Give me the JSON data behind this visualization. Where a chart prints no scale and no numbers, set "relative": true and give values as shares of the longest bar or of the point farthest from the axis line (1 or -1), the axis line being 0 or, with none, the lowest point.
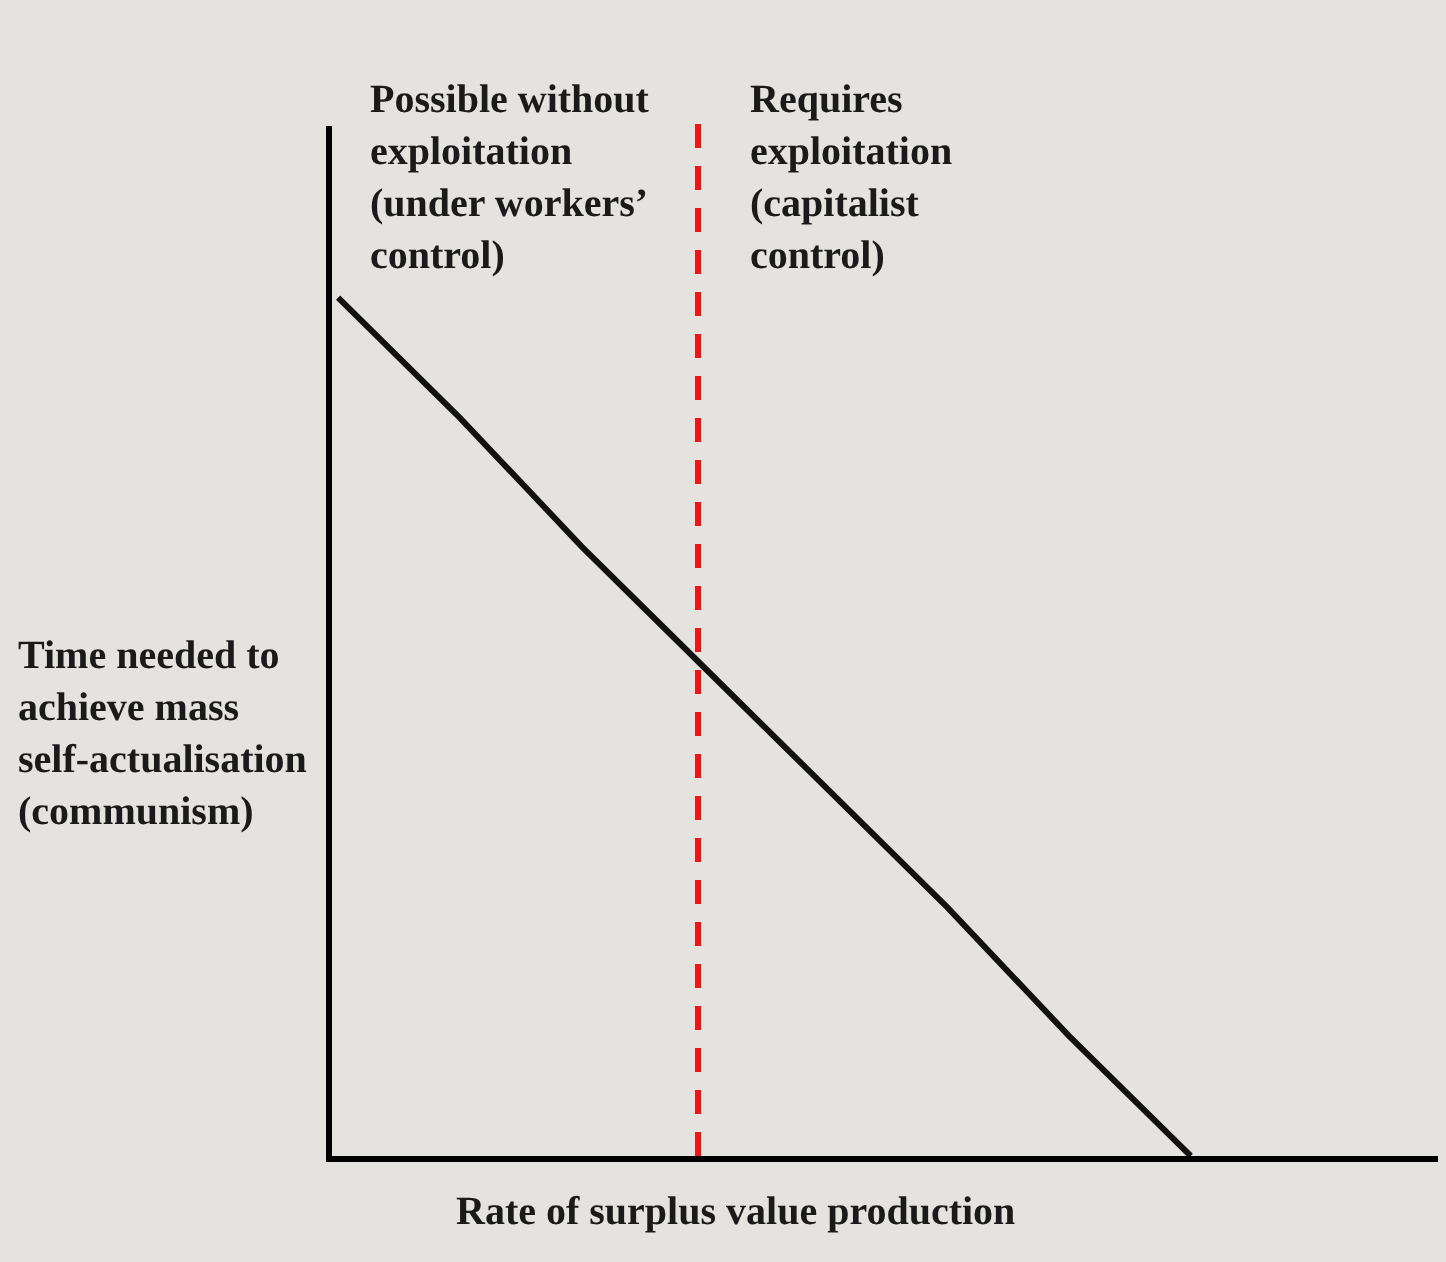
{
  "chart_data": {
    "type": "line",
    "relative": true,
    "categories": [
      null,
      null,
      null,
      null,
      null,
      null,
      null,
      null,
      null,
      null
    ],
    "values": [
      1,
      0.86,
      0.71,
      0.57,
      0.43,
      0.29,
      0.14,
      0,
      null,
      null
    ],
    "color": "#111111",
    "xlabel": "Rate of surplus value production",
    "ylabel": "Time needed to achieve mass self-actualisation (communism)",
    "annotations": [
      "Possible without exploitation (under workers’ control)",
      "Requires exploitation (capitalist control)"
    ],
    "grid": false,
    "marker": "none",
    "line_style": "solid"
  }
}
